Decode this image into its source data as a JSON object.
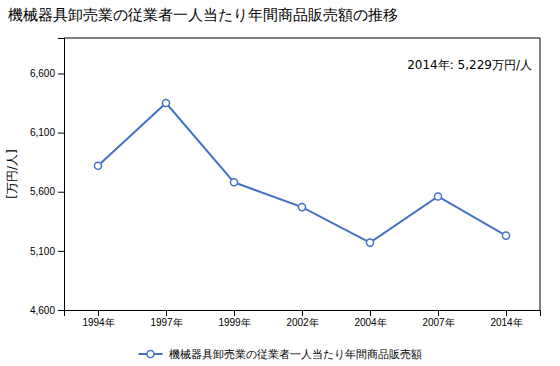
{
  "chart_data": {
    "type": "line",
    "title": "機械器具卸売業の従業者一人当たり年間商品販売額の推移",
    "ylabel": "[万円/人]",
    "annotation": "2014年: 5,229万円/人",
    "categories": [
      "1994年",
      "1997年",
      "1999年",
      "2002年",
      "2004年",
      "2007年",
      "2014年"
    ],
    "series": [
      {
        "name": "機械器具卸売業の従業者一人当たり年間商品販売額",
        "color": "#4472C4",
        "marker": "circle",
        "values": [
          5820,
          6350,
          5680,
          5470,
          5170,
          5560,
          5229
        ]
      }
    ],
    "ylim": [
      4600,
      6900
    ],
    "yticks": [
      {
        "value": 4600,
        "label": "4,600"
      },
      {
        "value": 5100,
        "label": "5,100"
      },
      {
        "value": 5600,
        "label": "5,600"
      },
      {
        "value": 6100,
        "label": "6,100"
      },
      {
        "value": 6600,
        "label": "6,600"
      }
    ],
    "grid": false,
    "legend": "bottom"
  }
}
